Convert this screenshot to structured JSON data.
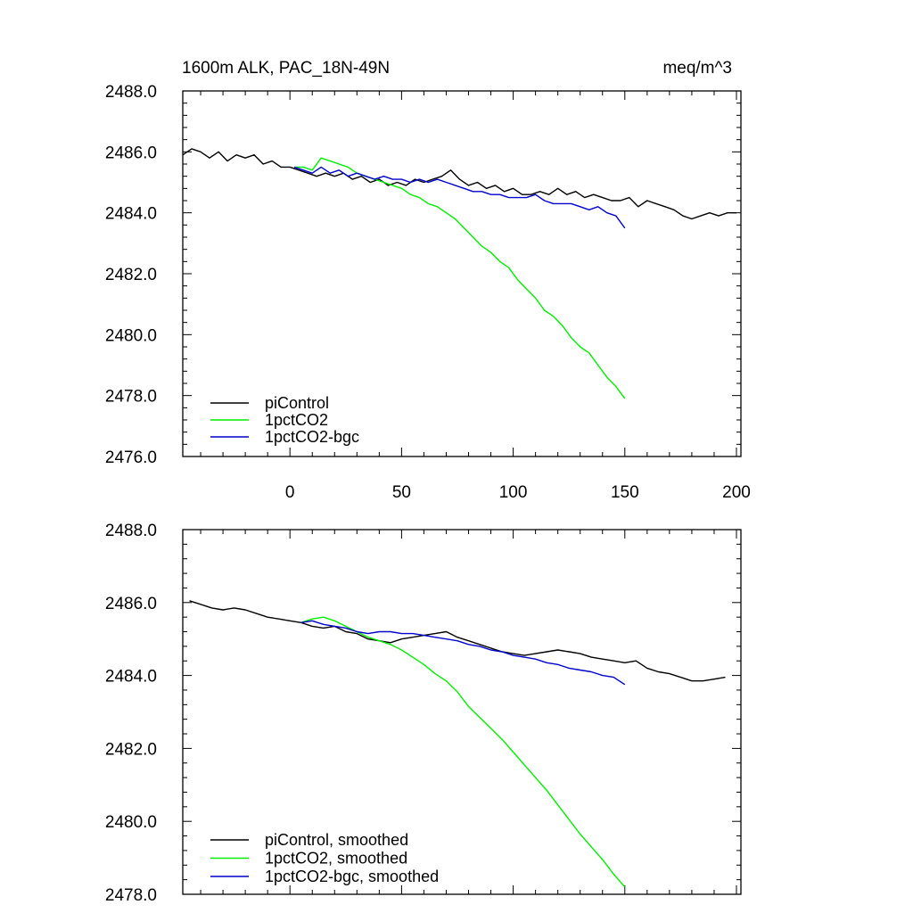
{
  "chart_data": [
    {
      "type": "line",
      "title": "1600m ALK, PAC_18N-49N",
      "title_right": "meq/m^3",
      "xlabel": "",
      "ylabel": "",
      "xlim": [
        -48,
        202
      ],
      "ylim": [
        2476,
        2488
      ],
      "x_ticks": [
        0,
        50,
        100,
        150,
        200
      ],
      "x_tick_labels": [
        "0",
        "50",
        "100",
        "150",
        "200"
      ],
      "y_ticks": [
        2476,
        2478,
        2480,
        2482,
        2484,
        2486,
        2488
      ],
      "y_tick_labels": [
        "2476.0",
        "2478.0",
        "2480.0",
        "2482.0",
        "2484.0",
        "2486.0",
        "2488.0"
      ],
      "grid": false,
      "legend": "bottom-left",
      "series": [
        {
          "name": "piControl",
          "color": "#000000",
          "x": [
            -48,
            -44,
            -40,
            -36,
            -32,
            -28,
            -24,
            -20,
            -16,
            -12,
            -8,
            -4,
            0,
            4,
            8,
            12,
            16,
            20,
            24,
            28,
            32,
            36,
            40,
            44,
            48,
            52,
            56,
            60,
            64,
            68,
            72,
            76,
            80,
            84,
            88,
            92,
            96,
            100,
            104,
            108,
            112,
            116,
            120,
            124,
            128,
            132,
            136,
            140,
            144,
            148,
            152,
            156,
            160,
            164,
            168,
            172,
            176,
            180,
            184,
            188,
            192,
            196,
            200
          ],
          "y": [
            2485.9,
            2486.1,
            2486.0,
            2485.8,
            2486.0,
            2485.7,
            2485.9,
            2485.8,
            2485.9,
            2485.6,
            2485.7,
            2485.5,
            2485.5,
            2485.4,
            2485.3,
            2485.2,
            2485.3,
            2485.2,
            2485.3,
            2485.1,
            2485.2,
            2485.0,
            2485.1,
            2484.9,
            2485.0,
            2484.9,
            2485.1,
            2485.0,
            2485.1,
            2485.2,
            2485.4,
            2485.1,
            2484.9,
            2485.0,
            2484.8,
            2484.9,
            2484.7,
            2484.8,
            2484.6,
            2484.6,
            2484.7,
            2484.6,
            2484.8,
            2484.6,
            2484.7,
            2484.5,
            2484.6,
            2484.5,
            2484.4,
            2484.4,
            2484.5,
            2484.2,
            2484.4,
            2484.3,
            2484.2,
            2484.1,
            2483.9,
            2483.8,
            2483.9,
            2484.0,
            2483.9,
            2484.0,
            2484.0
          ]
        },
        {
          "name": "1pctCO2",
          "color": "#00ee00",
          "x": [
            2,
            6,
            10,
            14,
            18,
            22,
            26,
            30,
            34,
            38,
            42,
            46,
            50,
            54,
            58,
            62,
            66,
            70,
            74,
            78,
            82,
            86,
            90,
            94,
            98,
            102,
            106,
            110,
            114,
            118,
            122,
            126,
            130,
            134,
            138,
            142,
            146,
            150
          ],
          "y": [
            2485.5,
            2485.5,
            2485.4,
            2485.8,
            2485.7,
            2485.6,
            2485.5,
            2485.3,
            2485.2,
            2485.1,
            2485.0,
            2484.9,
            2484.8,
            2484.6,
            2484.5,
            2484.3,
            2484.2,
            2484.0,
            2483.8,
            2483.5,
            2483.2,
            2482.9,
            2482.7,
            2482.4,
            2482.2,
            2481.8,
            2481.5,
            2481.2,
            2480.8,
            2480.6,
            2480.3,
            2479.9,
            2479.6,
            2479.4,
            2479.0,
            2478.6,
            2478.3,
            2477.9
          ]
        },
        {
          "name": "1pctCO2-bgc",
          "color": "#0000cc",
          "x": [
            2,
            6,
            10,
            14,
            18,
            22,
            26,
            30,
            34,
            38,
            42,
            46,
            50,
            54,
            58,
            62,
            66,
            70,
            74,
            78,
            82,
            86,
            90,
            94,
            98,
            102,
            106,
            110,
            114,
            118,
            122,
            126,
            130,
            134,
            138,
            142,
            146,
            150
          ],
          "y": [
            2485.5,
            2485.4,
            2485.3,
            2485.5,
            2485.3,
            2485.4,
            2485.2,
            2485.3,
            2485.2,
            2485.1,
            2485.2,
            2485.1,
            2485.1,
            2485.0,
            2485.1,
            2485.0,
            2485.1,
            2485.0,
            2484.9,
            2484.8,
            2484.7,
            2484.7,
            2484.6,
            2484.6,
            2484.5,
            2484.5,
            2484.5,
            2484.6,
            2484.4,
            2484.3,
            2484.3,
            2484.3,
            2484.2,
            2484.1,
            2484.2,
            2484.0,
            2483.9,
            2483.5
          ]
        }
      ]
    },
    {
      "type": "line",
      "title": "",
      "xlabel": "",
      "ylabel": "",
      "xlim": [
        -48,
        202
      ],
      "ylim": [
        2478,
        2488
      ],
      "x_ticks": [
        0,
        50,
        100,
        150,
        200
      ],
      "x_tick_labels": [],
      "y_ticks": [
        2478,
        2480,
        2482,
        2484,
        2486,
        2488
      ],
      "y_tick_labels": [
        "2478.0",
        "2480.0",
        "2482.0",
        "2484.0",
        "2486.0",
        "2488.0"
      ],
      "grid": false,
      "legend": "bottom-left",
      "series": [
        {
          "name": "piControl, smoothed",
          "color": "#000000",
          "x": [
            -45,
            -40,
            -35,
            -30,
            -25,
            -20,
            -15,
            -10,
            -5,
            0,
            5,
            10,
            15,
            20,
            25,
            30,
            35,
            40,
            45,
            50,
            55,
            60,
            65,
            70,
            75,
            80,
            85,
            90,
            95,
            100,
            105,
            110,
            115,
            120,
            125,
            130,
            135,
            140,
            145,
            150,
            155,
            160,
            165,
            170,
            175,
            180,
            185,
            190,
            195
          ],
          "y": [
            2486.05,
            2485.95,
            2485.85,
            2485.8,
            2485.85,
            2485.8,
            2485.7,
            2485.6,
            2485.55,
            2485.5,
            2485.45,
            2485.35,
            2485.3,
            2485.35,
            2485.2,
            2485.15,
            2485.0,
            2484.95,
            2484.9,
            2485.0,
            2485.05,
            2485.1,
            2485.15,
            2485.2,
            2485.05,
            2484.95,
            2484.85,
            2484.75,
            2484.65,
            2484.6,
            2484.55,
            2484.6,
            2484.65,
            2484.7,
            2484.65,
            2484.6,
            2484.5,
            2484.45,
            2484.4,
            2484.35,
            2484.4,
            2484.2,
            2484.1,
            2484.05,
            2483.95,
            2483.85,
            2483.85,
            2483.9,
            2483.95
          ]
        },
        {
          "name": "1pctCO2, smoothed",
          "color": "#00ee00",
          "x": [
            5,
            10,
            15,
            20,
            25,
            30,
            35,
            40,
            45,
            50,
            55,
            60,
            65,
            70,
            75,
            80,
            85,
            90,
            95,
            100,
            105,
            110,
            115,
            120,
            125,
            130,
            135,
            140,
            145,
            150
          ],
          "y": [
            2485.45,
            2485.55,
            2485.6,
            2485.5,
            2485.35,
            2485.2,
            2485.05,
            2484.95,
            2484.85,
            2484.7,
            2484.5,
            2484.3,
            2484.05,
            2483.85,
            2483.55,
            2483.15,
            2482.85,
            2482.55,
            2482.25,
            2481.9,
            2481.55,
            2481.2,
            2480.85,
            2480.45,
            2480.05,
            2479.65,
            2479.3,
            2478.95,
            2478.55,
            2478.2
          ]
        },
        {
          "name": "1pctCO2-bgc, smoothed",
          "color": "#0000cc",
          "x": [
            5,
            10,
            15,
            20,
            25,
            30,
            35,
            40,
            45,
            50,
            55,
            60,
            65,
            70,
            75,
            80,
            85,
            90,
            95,
            100,
            105,
            110,
            115,
            120,
            125,
            130,
            135,
            140,
            145,
            150
          ],
          "y": [
            2485.45,
            2485.5,
            2485.4,
            2485.35,
            2485.3,
            2485.2,
            2485.15,
            2485.2,
            2485.2,
            2485.15,
            2485.15,
            2485.1,
            2485.05,
            2485.0,
            2484.95,
            2484.85,
            2484.8,
            2484.7,
            2484.65,
            2484.55,
            2484.5,
            2484.45,
            2484.35,
            2484.3,
            2484.2,
            2484.15,
            2484.1,
            2484.0,
            2483.95,
            2483.75
          ]
        }
      ]
    }
  ]
}
